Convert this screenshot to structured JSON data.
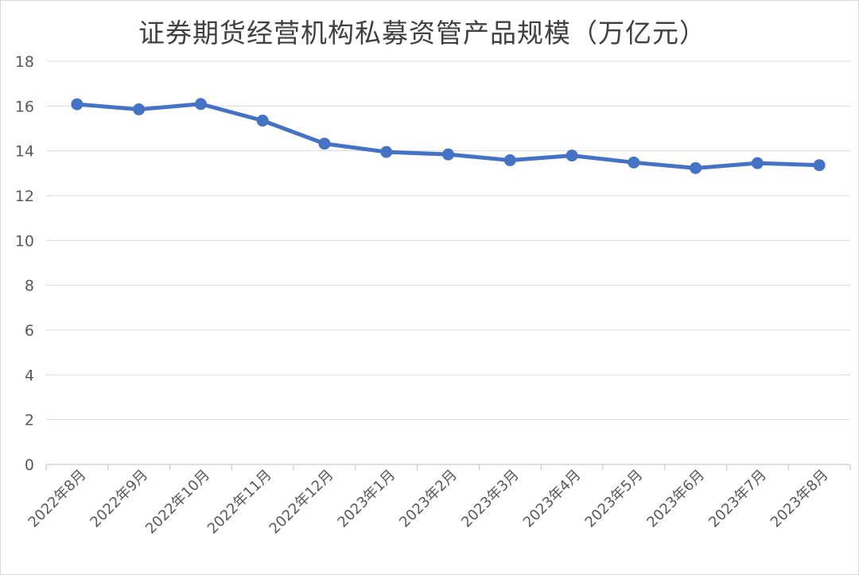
{
  "chart_data": {
    "type": "line",
    "title": "证券期货经营机构私募资管产品规模（万亿元）",
    "categories": [
      "2022年8月",
      "2022年9月",
      "2022年10月",
      "2022年11月",
      "2022年12月",
      "2023年1月",
      "2023年2月",
      "2023年3月",
      "2023年4月",
      "2023年5月",
      "2023年6月",
      "2023年7月",
      "2023年8月"
    ],
    "series": [
      {
        "values": [
          16.08,
          15.85,
          16.09,
          15.35,
          14.32,
          13.95,
          13.84,
          13.58,
          13.79,
          13.48,
          13.23,
          13.45,
          13.36
        ]
      }
    ],
    "xlabel": "",
    "ylabel": "",
    "ylim": [
      0,
      18
    ],
    "yticks": [
      "0",
      "2",
      "4",
      "6",
      "8",
      "10",
      "12",
      "14",
      "16",
      "18"
    ],
    "grid": true,
    "legend": "none",
    "line_color": "#4472c4"
  }
}
